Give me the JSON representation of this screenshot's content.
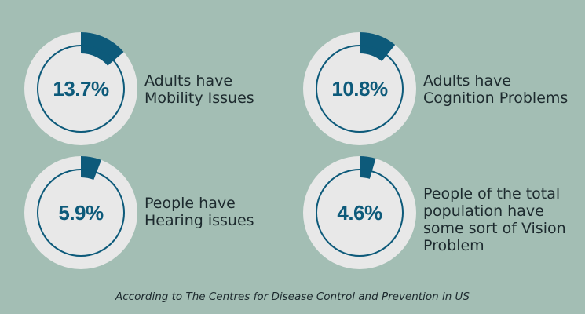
{
  "chart_data": {
    "type": "pie",
    "colors": {
      "background": "#a3beb4",
      "donut_base": "#e8e8e8",
      "highlight": "#0d5a7a",
      "ring": "#0d5a7a"
    },
    "items": [
      {
        "value": 13.7,
        "label": "13.7%",
        "text_lines": [
          "Adults have",
          "Mobility Issues"
        ]
      },
      {
        "value": 10.8,
        "label": "10.8%",
        "text_lines": [
          "Adults have",
          "Cognition Problems"
        ]
      },
      {
        "value": 5.9,
        "label": "5.9%",
        "text_lines": [
          "People have",
          "Hearing issues"
        ]
      },
      {
        "value": 4.6,
        "label": "4.6%",
        "text_lines": [
          "People of the total",
          "population have",
          "some sort of Vision",
          "Problem"
        ]
      }
    ],
    "footnote": "According to The Centres for Disease Control and Prevention in US"
  }
}
